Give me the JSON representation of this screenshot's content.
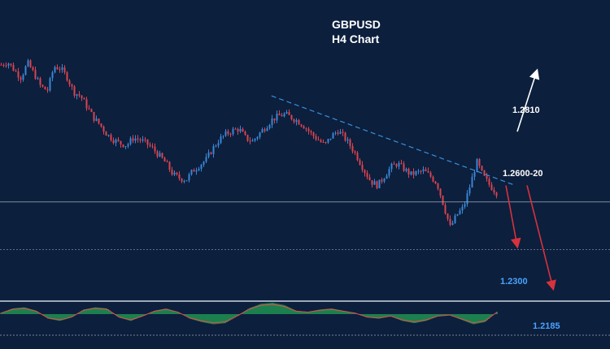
{
  "chart_data": {
    "type": "candlestick",
    "title": "GBPUSD",
    "subtitle": "H4 Chart",
    "colors": {
      "background": "#0c1f3d",
      "bull": "#3a86d4",
      "bear": "#d9434f",
      "trendline": "#3a8fd8",
      "level_line": "#9aa6b8",
      "bull_projection": "#ffffff",
      "bear_projection": "#d8323c",
      "oscillator_positive": "#27c25a",
      "oscillator_line": "#e84d4d"
    },
    "candle_close_path": [
      1.2805,
      1.2812,
      1.279,
      1.277,
      1.281,
      1.278,
      1.2745,
      1.2735,
      1.28,
      1.2795,
      1.277,
      1.273,
      1.272,
      1.269,
      1.266,
      1.264,
      1.2615,
      1.26,
      1.259,
      1.2585,
      1.2605,
      1.26,
      1.259,
      1.2575,
      1.2555,
      1.2535,
      1.2505,
      1.2495,
      1.249,
      1.2515,
      1.253,
      1.2545,
      1.2575,
      1.26,
      1.2615,
      1.2625,
      1.263,
      1.2605,
      1.2595,
      1.2615,
      1.2635,
      1.2655,
      1.2665,
      1.267,
      1.266,
      1.265,
      1.2635,
      1.2615,
      1.26,
      1.2585,
      1.261,
      1.2625,
      1.2605,
      1.258,
      1.255,
      1.2515,
      1.2485,
      1.2475,
      1.25,
      1.2525,
      1.2535,
      1.252,
      1.2505,
      1.251,
      1.2515,
      1.25,
      1.248,
      1.242,
      1.236,
      1.2395,
      1.2415,
      1.2475,
      1.254,
      1.25,
      1.2475,
      1.2455
    ],
    "trendline": {
      "from": [
        0.445,
        1.272
      ],
      "to": [
        0.845,
        1.2475
      ],
      "style": "dashed"
    },
    "horizontal_levels": [
      {
        "price": 1.243,
        "style": "solid"
      },
      {
        "price": 1.23,
        "style": "dotted"
      }
    ],
    "annotations": [
      {
        "text": "1.2810",
        "color": "#ffffff"
      },
      {
        "text": "1.2600-20",
        "color": "#ffffff"
      },
      {
        "text": "1.2300",
        "color": "#4aa3ff"
      },
      {
        "text": "1.2185",
        "color": "#4aa3ff"
      }
    ],
    "projections": [
      {
        "direction": "up",
        "from": 1.26,
        "to": 1.281
      },
      {
        "direction": "down",
        "from": 1.2475,
        "to": 1.23
      },
      {
        "direction": "down",
        "from": 1.2475,
        "to": 1.2185
      }
    ],
    "oscillator": {
      "panel": "bottom",
      "histogram": [
        0.1,
        0.5,
        0.6,
        0.3,
        -0.4,
        -0.6,
        -0.3,
        0.4,
        0.6,
        0.5,
        -0.3,
        -0.6,
        -0.2,
        0.3,
        0.5,
        0.2,
        -0.4,
        -0.7,
        -0.9,
        -0.8,
        -0.2,
        0.5,
        0.9,
        1.0,
        0.8,
        0.3,
        0.2,
        0.4,
        0.5,
        0.3,
        0.1,
        -0.3,
        -0.4,
        -0.2,
        -0.6,
        -0.8,
        -0.6,
        -0.2,
        -0.1,
        -0.5,
        -0.9,
        -0.7,
        0.2
      ]
    },
    "grid": false,
    "legend": "none"
  }
}
